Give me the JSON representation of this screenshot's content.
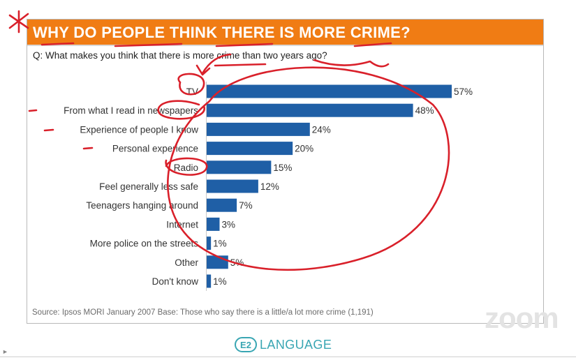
{
  "slide": {
    "title": "WHY DO PEOPLE THINK THERE IS MORE CRIME?",
    "question": "Q: What makes you think that there is more crime than two years ago?",
    "source": "Source: Ipsos MORI January 2007   Base: Those who say there is a little/a lot more crime (1,191)",
    "colors": {
      "title_bg": "#f07c14",
      "bar": "#1f5fa6",
      "annotation": "#d9202a"
    }
  },
  "chart_data": {
    "type": "bar",
    "orientation": "horizontal",
    "categories": [
      "TV",
      "From what I read in newspapers",
      "Experience of people I know",
      "Personal experience",
      "Radio",
      "Feel generally less safe",
      "Teenagers hanging around",
      "Internet",
      "More police on the streets",
      "Other",
      "Don't know"
    ],
    "values": [
      57,
      48,
      24,
      20,
      15,
      12,
      7,
      3,
      1,
      5,
      1
    ],
    "value_labels": [
      "57%",
      "48%",
      "24%",
      "20%",
      "15%",
      "12%",
      "7%",
      "3%",
      "1%",
      "5%",
      "1%"
    ],
    "xlim": [
      0,
      57
    ],
    "grid": false,
    "legend": "none"
  },
  "branding": {
    "logo": "E2",
    "name": "LANGUAGE",
    "watermark": "zoom"
  }
}
